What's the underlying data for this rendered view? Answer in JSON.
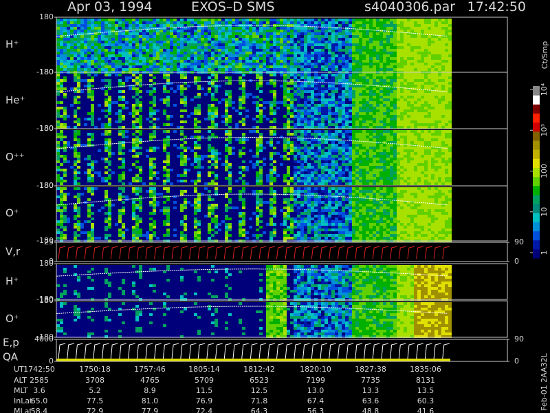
{
  "header": {
    "date": "Apr 03, 1994",
    "instrument": "EXOS–D SMS",
    "file": "s4040306.par",
    "time": "17:42:50"
  },
  "panels": [
    {
      "label": "H⁺",
      "ticks": [
        180,
        -180
      ]
    },
    {
      "label": "He⁺",
      "ticks": [
        180,
        -180
      ]
    },
    {
      "label": "O⁺⁺",
      "ticks": [
        180,
        -180
      ]
    },
    {
      "label": "O⁺",
      "ticks": [
        180,
        -180
      ]
    },
    {
      "label": "V,r",
      "ticks": [
        25,
        0
      ],
      "right_ticks": [
        90,
        0
      ]
    },
    {
      "label": "H⁺",
      "ticks": [
        180,
        -180
      ]
    },
    {
      "label": "O⁺",
      "ticks": [
        180,
        -180
      ]
    },
    {
      "label": "E,p",
      "label2": "QA",
      "ticks": [
        4000,
        0
      ],
      "right_ticks": [
        90,
        0
      ]
    }
  ],
  "colorbar": {
    "title": "Ct/Smp",
    "scale": "log",
    "ticks": [
      1,
      10,
      100,
      {
        "value": 1000,
        "label": "10³"
      },
      {
        "value": 10000,
        "label": "10⁴"
      }
    ]
  },
  "table": {
    "rows": [
      {
        "label": "UT",
        "values": [
          "1742:50",
          "1750:18",
          "1757:46",
          "1805:14",
          "1812:42",
          "1820:10",
          "1827:38",
          "1835:06"
        ]
      },
      {
        "label": "ALT",
        "values": [
          "2585",
          "3708",
          "4765",
          "5709",
          "6523",
          "7199",
          "7735",
          "8131"
        ]
      },
      {
        "label": "MLT",
        "values": [
          "3.6",
          "5.2",
          "8.9",
          "11.5",
          "12.5",
          "13.0",
          "13.3",
          "13.5"
        ]
      },
      {
        "label": "InLat",
        "values": [
          "65.0",
          "77.5",
          "81.0",
          "76.9",
          "71.8",
          "67.4",
          "63.6",
          "60.3"
        ]
      },
      {
        "label": "MLat",
        "values": [
          "58.4",
          "72.9",
          "77.9",
          "72.4",
          "64.3",
          "56.3",
          "48.8",
          "41.6"
        ]
      }
    ]
  },
  "footer": "Feb-01 2AA32L"
}
